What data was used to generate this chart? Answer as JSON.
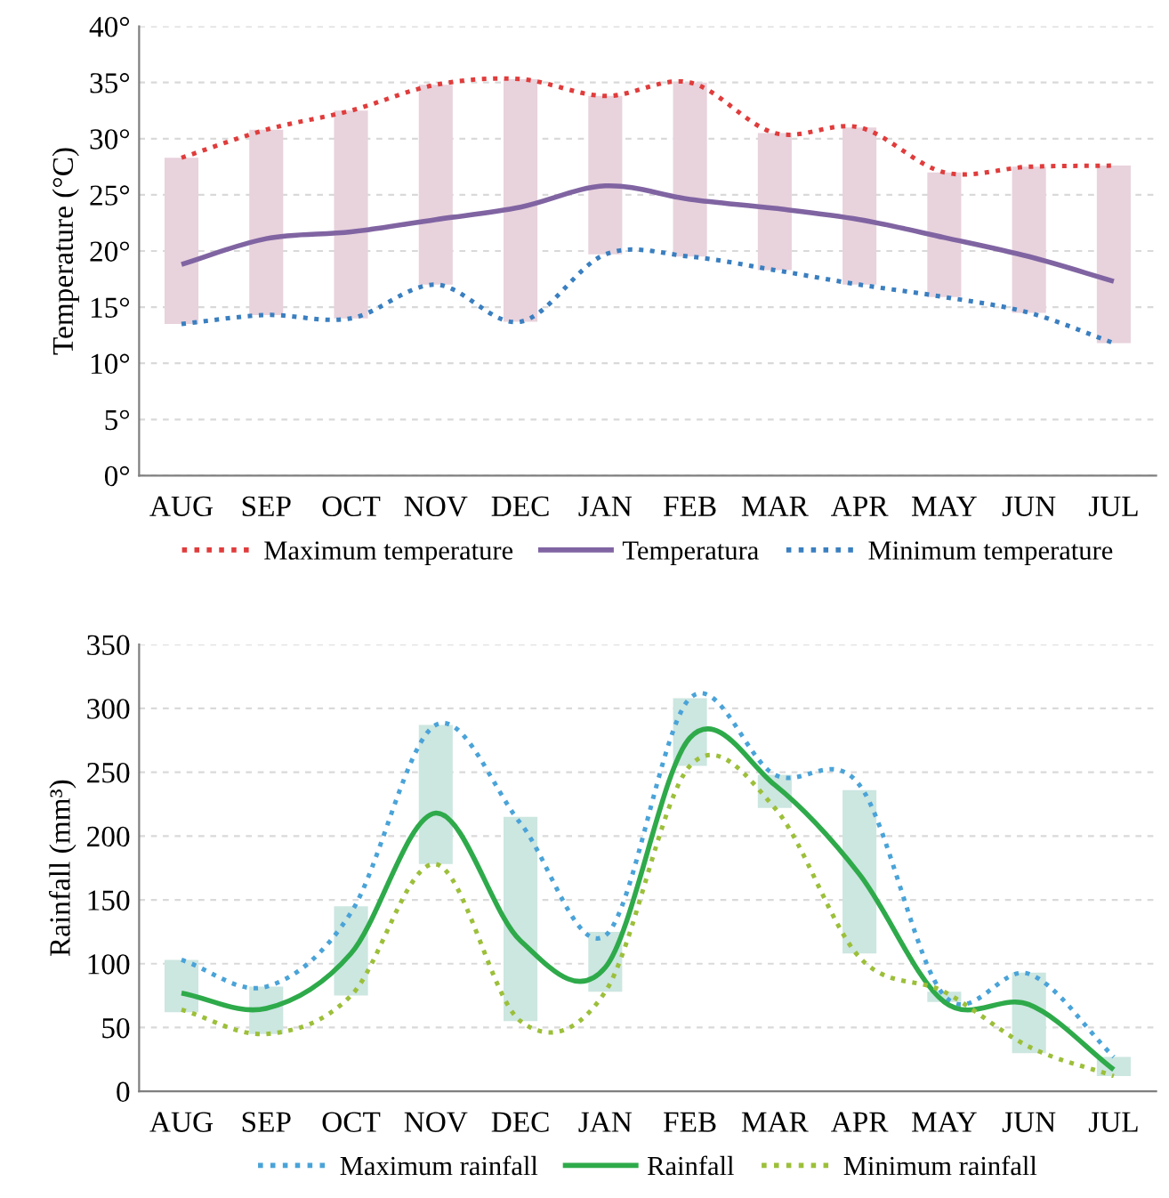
{
  "chart_data": [
    {
      "type": "line",
      "ylabel": "Temperature (°C)",
      "categories": [
        "AUG",
        "SEP",
        "OCT",
        "NOV",
        "DEC",
        "JAN",
        "FEB",
        "MAR",
        "APR",
        "MAY",
        "JUN",
        "JUL"
      ],
      "ylim": [
        0,
        40
      ],
      "yticks": [
        {
          "value": 0,
          "label": "0°"
        },
        {
          "value": 5,
          "label": "5°"
        },
        {
          "value": 10,
          "label": "10°"
        },
        {
          "value": 15,
          "label": "15°"
        },
        {
          "value": 20,
          "label": "20°"
        },
        {
          "value": 25,
          "label": "25°"
        },
        {
          "value": 30,
          "label": "30°"
        },
        {
          "value": 35,
          "label": "35°"
        },
        {
          "value": 40,
          "label": "40°"
        }
      ],
      "grid": "y",
      "legend": "bottom",
      "series": [
        {
          "type": "bar",
          "color": "#e8d2dc",
          "base": [
            13.5,
            14.3,
            14.0,
            17.0,
            13.7,
            19.7,
            19.5,
            18.3,
            17.0,
            15.9,
            14.5,
            11.8
          ],
          "values": [
            14.8,
            16.5,
            18.5,
            17.8,
            21.6,
            14.1,
            15.5,
            12.2,
            14.0,
            11.1,
            13.0,
            15.8
          ]
        },
        {
          "name": "Maximum temperature",
          "color": "#e03c3c",
          "line_style": "dotted",
          "values": [
            28.3,
            30.8,
            32.5,
            34.8,
            35.3,
            33.8,
            35.0,
            30.5,
            31.0,
            27.0,
            27.5,
            27.6
          ]
        },
        {
          "name": "Temperatura",
          "color": "#8064a2",
          "line_style": "solid",
          "values": [
            18.8,
            21.1,
            21.7,
            22.8,
            23.9,
            25.8,
            24.6,
            23.8,
            22.8,
            21.2,
            19.5,
            17.3
          ]
        },
        {
          "name": "Minimum temperature",
          "color": "#3a7fc0",
          "line_style": "dotted",
          "values": [
            13.5,
            14.3,
            14.0,
            17.0,
            13.7,
            19.7,
            19.5,
            18.3,
            17.0,
            15.9,
            14.5,
            11.8
          ]
        }
      ]
    },
    {
      "type": "line",
      "ylabel": "Rainfall (mm³)",
      "categories": [
        "AUG",
        "SEP",
        "OCT",
        "NOV",
        "DEC",
        "JAN",
        "FEB",
        "MAR",
        "APR",
        "MAY",
        "JUN",
        "JUL"
      ],
      "ylim": [
        0,
        350
      ],
      "yticks": [
        0,
        50,
        100,
        150,
        200,
        250,
        300,
        350
      ],
      "grid": "y",
      "legend": "bottom",
      "series": [
        {
          "type": "bar",
          "color": "#cce6e0",
          "base": [
            62,
            45,
            75,
            178,
            55,
            78,
            255,
            222,
            108,
            70,
            30,
            12
          ],
          "values": [
            41,
            37,
            70,
            109,
            160,
            47,
            53,
            26,
            128,
            8,
            63,
            15
          ]
        },
        {
          "name": "Maximum rainfall",
          "color": "#4aa3d8",
          "line_style": "dotted",
          "values": [
            103,
            82,
            140,
            287,
            210,
            122,
            308,
            248,
            240,
            75,
            92,
            27
          ]
        },
        {
          "name": "Rainfall",
          "color": "#2eaa4a",
          "line_style": "solid",
          "values": [
            77,
            65,
            108,
            218,
            118,
            97,
            277,
            240,
            170,
            70,
            68,
            17
          ]
        },
        {
          "name": "Minimum rainfall",
          "color": "#9cbf3a",
          "line_style": "dotted",
          "values": [
            64,
            45,
            75,
            178,
            55,
            78,
            255,
            222,
            105,
            78,
            35,
            12
          ]
        }
      ]
    }
  ]
}
